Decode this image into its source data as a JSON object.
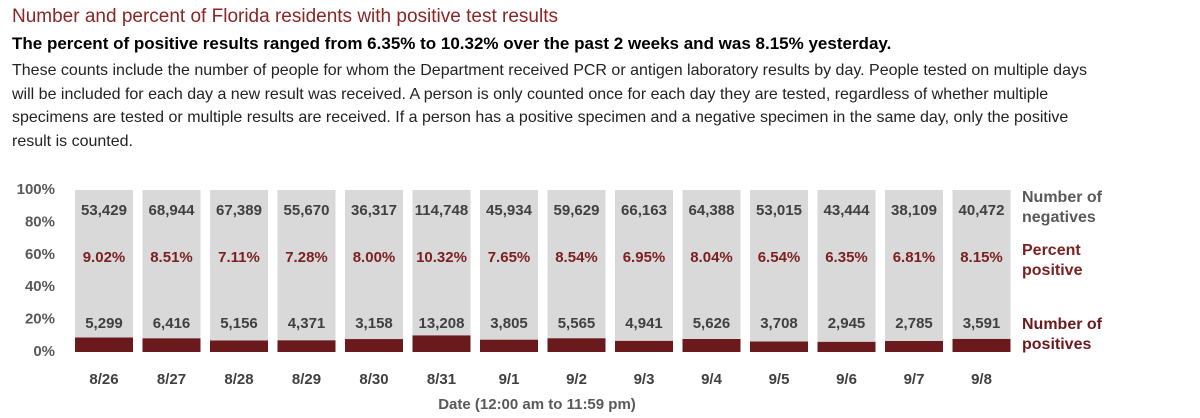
{
  "chart_data": {
    "type": "bar",
    "stacked": "percent",
    "title": "Number and percent of Florida residents with positive test results",
    "subtitle": "The percent of positive results ranged from 6.35% to 10.32% over the past 2 weeks and was 8.15% yesterday.",
    "description": "These counts include the number of people for whom the Department received PCR or antigen laboratory results by day. People tested on multiple days will be included for each day a new result was received. A person is only counted once for each day they are tested, regardless of whether multiple specimens are tested or multiple results are received. If a person has a positive specimen and a negative specimen in the same day, only the positive result is counted.",
    "xlabel": "Date (12:00 am to 11:59 pm)",
    "categories": [
      "8/26",
      "8/27",
      "8/28",
      "8/29",
      "8/30",
      "8/31",
      "9/1",
      "9/2",
      "9/3",
      "9/4",
      "9/5",
      "9/6",
      "9/7",
      "9/8"
    ],
    "series": [
      {
        "name": "Number of positives",
        "color": "#6a1a1c",
        "label_color": "#404040",
        "values": [
          5299,
          6416,
          5156,
          4371,
          3158,
          13208,
          3805,
          5565,
          4941,
          5626,
          3708,
          2945,
          2785,
          3591
        ],
        "value_labels": [
          "5,299",
          "6,416",
          "5,156",
          "4,371",
          "3,158",
          "13,208",
          "3,805",
          "5,565",
          "4,941",
          "5,626",
          "3,708",
          "2,945",
          "2,785",
          "3,591"
        ]
      },
      {
        "name": "Number of negatives",
        "color": "#d9d9d9",
        "label_color": "#404040",
        "values": [
          53429,
          68944,
          67389,
          55670,
          36317,
          114748,
          45934,
          59629,
          66163,
          64388,
          53015,
          43444,
          38109,
          40472
        ],
        "value_labels": [
          "53,429",
          "68,944",
          "67,389",
          "55,670",
          "36,317",
          "114,748",
          "45,934",
          "59,629",
          "66,163",
          "64,388",
          "53,015",
          "43,444",
          "38,109",
          "40,472"
        ]
      }
    ],
    "percent_positive": {
      "name": "Percent positive",
      "color": "#7b1f1f",
      "values": [
        9.02,
        8.51,
        7.11,
        7.28,
        8,
        10.32,
        7.65,
        8.54,
        6.95,
        8.04,
        6.54,
        6.35,
        6.81,
        8.15
      ],
      "value_labels": [
        "9.02%",
        "8.51%",
        "7.11%",
        "7.28%",
        "8.00%",
        "10.32%",
        "7.65%",
        "8.54%",
        "6.95%",
        "8.04%",
        "6.54%",
        "6.35%",
        "6.81%",
        "8.15%"
      ]
    },
    "ylim": [
      0,
      100
    ],
    "yticks": [
      {
        "value": 0,
        "label": "0%"
      },
      {
        "value": 20,
        "label": "20%"
      },
      {
        "value": 40,
        "label": "40%"
      },
      {
        "value": 60,
        "label": "60%"
      },
      {
        "value": 80,
        "label": "80%"
      },
      {
        "value": 100,
        "label": "100%"
      }
    ],
    "grid": false
  }
}
